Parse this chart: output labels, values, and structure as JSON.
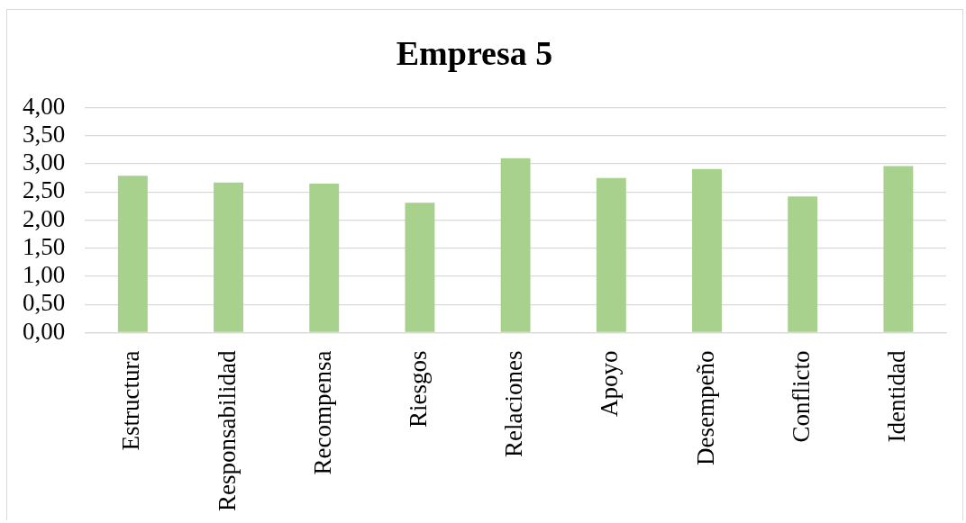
{
  "chart_data": {
    "type": "bar",
    "title": "Empresa 5",
    "categories": [
      "Estructura",
      "Responsabilidad",
      "Recompensa",
      "Riesgos",
      "Relaciones",
      "Apoyo",
      "Desempeño",
      "Conflicto",
      "Identidad"
    ],
    "values": [
      2.79,
      2.67,
      2.65,
      2.31,
      3.1,
      2.75,
      2.91,
      2.42,
      2.96
    ],
    "color": "#a9d18e",
    "ylim": [
      0,
      4
    ],
    "yticks": [
      {
        "value": 0,
        "label": "0,00"
      },
      {
        "value": 0.5,
        "label": "0,50"
      },
      {
        "value": 1,
        "label": "1,00"
      },
      {
        "value": 1.5,
        "label": "1,50"
      },
      {
        "value": 2,
        "label": "2,00"
      },
      {
        "value": 2.5,
        "label": "2,50"
      },
      {
        "value": 3,
        "label": "3,00"
      },
      {
        "value": 3.5,
        "label": "3,50"
      },
      {
        "value": 4,
        "label": "4,00"
      }
    ],
    "grid": "y"
  }
}
